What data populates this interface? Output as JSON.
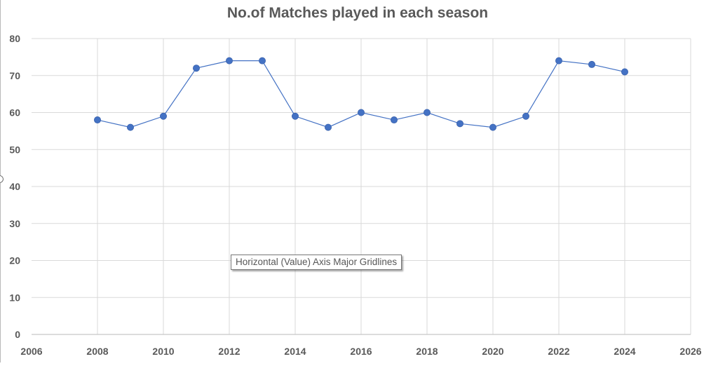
{
  "chart_data": {
    "type": "scatter",
    "title": "No.of Matches played in each season",
    "xlabel": "",
    "ylabel": "",
    "xlim": [
      2006,
      2026
    ],
    "ylim": [
      0,
      80
    ],
    "x_ticks": [
      2006,
      2008,
      2010,
      2012,
      2014,
      2016,
      2018,
      2020,
      2022,
      2024,
      2026
    ],
    "y_ticks": [
      0,
      10,
      20,
      30,
      40,
      50,
      60,
      70,
      80
    ],
    "grid": true,
    "legend": "none",
    "series": [
      {
        "x": [
          2008,
          2009,
          2010,
          2011,
          2012,
          2013,
          2014,
          2015,
          2016,
          2017,
          2018,
          2019,
          2020,
          2021,
          2022,
          2023,
          2024
        ],
        "y": [
          58,
          56,
          59,
          72,
          74,
          74,
          59,
          56,
          60,
          58,
          60,
          57,
          56,
          59,
          74,
          73,
          71
        ],
        "color": "#4472c4",
        "line": "straight with markers"
      }
    ]
  },
  "tooltip": {
    "text": "Horizontal (Value) Axis Major Gridlines"
  },
  "colors": {
    "series": "#4472c4",
    "grid": "#d9d9d9",
    "text": "#595959"
  }
}
